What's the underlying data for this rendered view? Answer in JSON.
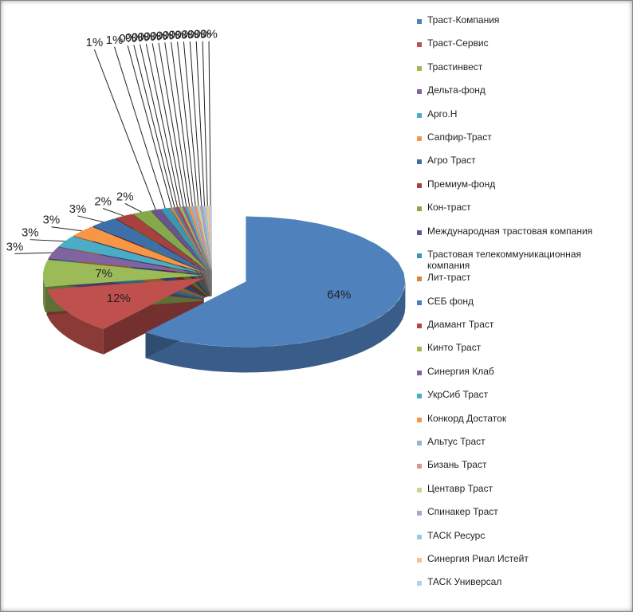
{
  "chart_data": {
    "type": "pie",
    "categories": [
      "Траст-Компания",
      "Траст-Сервис",
      "Трастинвест",
      "Дельта-фонд",
      "Арго.Н",
      "Сапфир-Траст",
      "Агро Траст",
      "Премиум-фонд",
      "Кон-траст",
      "Международная трастовая компания",
      "Трастовая телекоммуникационная компания",
      "Лит-траст",
      "СЕБ фонд",
      "Диамант Траст",
      "Кинто Траст",
      "Синергия Клаб",
      "УкрСиб Траст",
      "Конкорд Достаток",
      "Альтус Траст",
      "Бизань Траст",
      "Центавр Траст",
      "Спинакер Траст",
      "ТАСК Ресурс",
      "Синергия Риал Истейт",
      "ТАСК Универсал"
    ],
    "values": [
      64,
      12,
      7,
      3,
      3,
      3,
      3,
      2,
      2,
      1,
      1,
      0.3,
      0.3,
      0.3,
      0.3,
      0.3,
      0.3,
      0.3,
      0.3,
      0.3,
      0.3,
      0.3,
      0.3,
      0.3,
      0.3
    ],
    "value_labels": [
      "64%",
      "12%",
      "7%",
      "3%",
      "3%",
      "3%",
      "3%",
      "2%",
      "2%",
      "1%",
      "1%",
      "0%",
      "0%",
      "0%",
      "0%",
      "0%",
      "0%",
      "0%",
      "0%",
      "0%",
      "0%",
      "0%",
      "0%",
      "0%",
      "0%"
    ],
    "colors": [
      "#4F81BD",
      "#C0504D",
      "#9BBB59",
      "#8064A2",
      "#4BACC6",
      "#F79646",
      "#3F6FA8",
      "#A8403D",
      "#86A84A",
      "#6C5390",
      "#3A97B0",
      "#DD8236",
      "#4A7EBF",
      "#B54541",
      "#9BBB59",
      "#8064A2",
      "#4BACC6",
      "#F79646",
      "#95B3D7",
      "#D99694",
      "#C3D69B",
      "#B3A2C7",
      "#93CDDD",
      "#FAC090",
      "#B9CDE5"
    ]
  }
}
